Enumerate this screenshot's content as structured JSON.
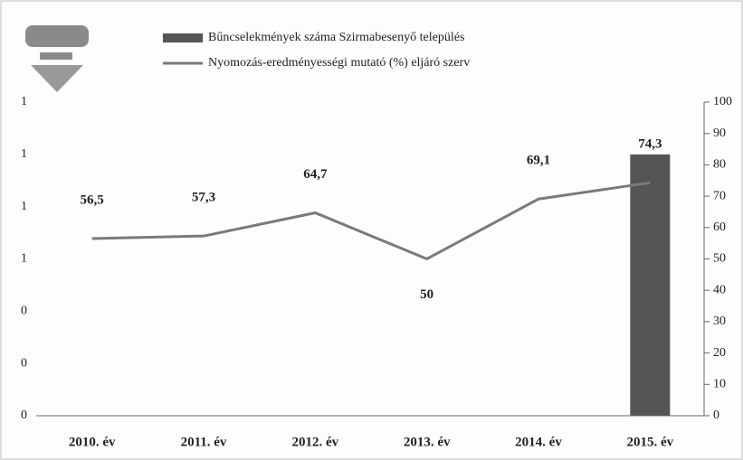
{
  "chart_data": {
    "type": "bar-line",
    "categories": [
      "2010. év",
      "2011. év",
      "2012. év",
      "2013. év",
      "2014. év",
      "2015. év"
    ],
    "series": [
      {
        "name": "Bűncselekmények száma Szirmabesenyő település",
        "type": "bar",
        "color": "#555555",
        "values": [
          null,
          null,
          null,
          null,
          null,
          1
        ]
      },
      {
        "name": "Nyomozás-eredményességi mutató (%) eljáró szerv",
        "type": "line",
        "axis": "y2",
        "color": "#7a7a7a",
        "values": [
          56.5,
          57.3,
          64.7,
          50,
          69.1,
          74.3
        ],
        "value_labels": [
          "56,5",
          "57,3",
          "64,7",
          "50",
          "69,1",
          "74,3"
        ]
      }
    ],
    "ylim": [
      0,
      1.2
    ],
    "yticks": [
      {
        "value": 0,
        "label": "0"
      },
      {
        "value": 0.2,
        "label": "0"
      },
      {
        "value": 0.4,
        "label": "0"
      },
      {
        "value": 0.6,
        "label": "1"
      },
      {
        "value": 0.8,
        "label": "1"
      },
      {
        "value": 1,
        "label": "1"
      },
      {
        "value": 1.2,
        "label": "1"
      }
    ],
    "y2lim": [
      0,
      100
    ],
    "y2ticks": [
      0,
      10,
      20,
      30,
      40,
      50,
      60,
      70,
      80,
      90,
      100
    ],
    "legend": "top"
  }
}
